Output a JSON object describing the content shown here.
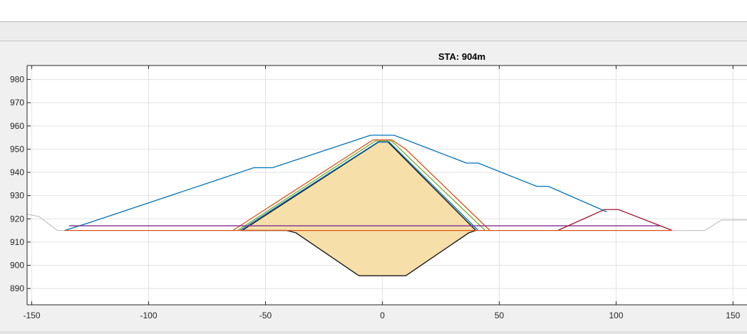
{
  "chart_data": {
    "type": "line",
    "title": "STA: 904m",
    "xlabel": "",
    "ylabel": "",
    "xlim": [
      -152,
      156
    ],
    "ylim": [
      883,
      986
    ],
    "xticks": [
      -150,
      -100,
      -50,
      0,
      50,
      100,
      150
    ],
    "xtick_labels": [
      "-150",
      "-100",
      "-50",
      "0",
      "50",
      "100",
      "150"
    ],
    "yticks": [
      890,
      900,
      910,
      920,
      930,
      940,
      950,
      960,
      970,
      980
    ],
    "ytick_labels": [
      "890",
      "900",
      "910",
      "920",
      "930",
      "940",
      "950",
      "960",
      "970",
      "980"
    ],
    "grid": true,
    "fill": {
      "name": "",
      "color": "#f7dfa9",
      "outline_color": "#1a1a1a",
      "points": [
        [
          -60,
          915
        ],
        [
          -1,
          953.5
        ],
        [
          2,
          953.5
        ],
        [
          40,
          915
        ],
        [
          37,
          914
        ],
        [
          10,
          895.5
        ],
        [
          -10,
          895.5
        ],
        [
          -37,
          914
        ],
        [
          -41,
          915
        ],
        [
          -60,
          915
        ]
      ]
    },
    "series": [
      {
        "name": "",
        "color": "#0072bd",
        "points": [
          [
            -136,
            915
          ],
          [
            -125,
            918.5
          ],
          [
            -55,
            942
          ],
          [
            -47,
            942
          ],
          [
            -5,
            956
          ],
          [
            5,
            956
          ],
          [
            36,
            944
          ],
          [
            41,
            944
          ],
          [
            66,
            934
          ],
          [
            71,
            934
          ],
          [
            96,
            923
          ]
        ]
      },
      {
        "name": "",
        "color": "#d95319",
        "points": [
          [
            -64,
            915
          ],
          [
            -4,
            954
          ],
          [
            4,
            954
          ],
          [
            10,
            950
          ],
          [
            46,
            915
          ]
        ]
      },
      {
        "name": "",
        "color": "#77ac30",
        "points": [
          [
            -62,
            915
          ],
          [
            -3,
            953.5
          ],
          [
            4,
            953.5
          ],
          [
            44,
            915
          ]
        ]
      },
      {
        "name": "",
        "color": "#0072bd",
        "points": [
          [
            -61,
            915
          ],
          [
            -2,
            953
          ],
          [
            3,
            953
          ],
          [
            41,
            915
          ]
        ]
      },
      {
        "name": "",
        "color": "#7e2f8e",
        "points": [
          [
            -134,
            917
          ],
          [
            119,
            917
          ]
        ]
      },
      {
        "name": "",
        "color": "#a2142f",
        "points": [
          [
            75,
            915
          ],
          [
            95,
            924
          ],
          [
            101,
            924
          ],
          [
            119,
            917
          ],
          [
            124,
            915
          ]
        ]
      },
      {
        "name": "",
        "color": "#d95319",
        "points": [
          [
            -136,
            915
          ],
          [
            124,
            915
          ]
        ]
      },
      {
        "name": "",
        "color": "#c8c8c8",
        "points": [
          [
            -152,
            922
          ],
          [
            -147,
            921
          ],
          [
            -139,
            915
          ],
          [
            -136,
            915
          ]
        ]
      },
      {
        "name": "",
        "color": "#c8c8c8",
        "points": [
          [
            124,
            915
          ],
          [
            138,
            915
          ],
          [
            145,
            919.5
          ],
          [
            156,
            919.5
          ]
        ]
      }
    ]
  }
}
